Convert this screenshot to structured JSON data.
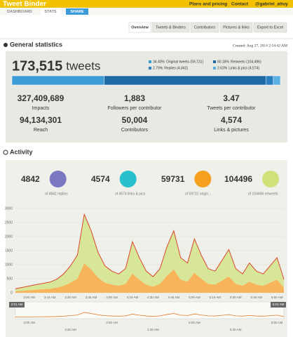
{
  "header": {
    "brand": "Tweet Binder",
    "links": [
      "Plans and pricing",
      "Contact",
      "@gabriel_attuy"
    ],
    "tabs": [
      "DASHBOARD",
      "STATS",
      "SHARE"
    ]
  },
  "nav": [
    "Overview",
    "Tweets & Binders",
    "Contributors",
    "Pictures & links",
    "Export to Excel"
  ],
  "general": {
    "title": "General statistics",
    "created": "Created: Aug 27, 2014 2:54:42 AM",
    "total": "173,515",
    "total_unit": "tweets",
    "breakdown": {
      "values": [
        34.4,
        2.79,
        60.18,
        2.63
      ],
      "value_labels": [
        "34.40%",
        "2.79%",
        "60.18%",
        "2.63%"
      ],
      "labels": [
        "Original tweets (59,731)",
        "Replies (4,842)",
        "Retweets (104,496)",
        "Links & pics (4,574)"
      ],
      "colors": [
        "#3d9bd6",
        "#2a7fc0",
        "#1f6aa5",
        "#5ab0e0"
      ]
    },
    "stats": [
      {
        "value": "327,409,689",
        "label": "Impacts"
      },
      {
        "value": "1,883",
        "label": "Followers per contributor"
      },
      {
        "value": "3.47",
        "label": "Tweets per contributor"
      },
      {
        "value": "94,134,301",
        "label": "Reach"
      },
      {
        "value": "50,004",
        "label": "Contributors"
      },
      {
        "value": "4,574",
        "label": "Links & pictures"
      }
    ]
  },
  "activity": {
    "title": "Activity",
    "counters": [
      {
        "value": "4842",
        "label": "of 4842 replies",
        "color": "#7b78c4"
      },
      {
        "value": "4574",
        "label": "of 4574 links & pics",
        "color": "#27c0cc"
      },
      {
        "value": "59731",
        "label": "of 59731 origin...",
        "color": "#f5a01e"
      },
      {
        "value": "104496",
        "label": "of 104496 retweets",
        "color": "#cfe27a"
      }
    ]
  },
  "chart_data": {
    "type": "area",
    "stacked": true,
    "grid": true,
    "line_color": "#d9482b",
    "categories": [
      null,
      null,
      "3:00 AM",
      null,
      null,
      "3:15 AM",
      null,
      null,
      "3:30 AM",
      null,
      null,
      "3:45 AM",
      null,
      null,
      "4:00 AM",
      null,
      null,
      "4:15 AM",
      null,
      null,
      "4:30 AM",
      null,
      null,
      "4:45 AM",
      null,
      null,
      "5:00 AM",
      null,
      null,
      "5:15 AM",
      null,
      null,
      "5:30 AM",
      null,
      null,
      "5:45 AM",
      null,
      null,
      "6:00 AM",
      null
    ],
    "series": [
      {
        "color": "#f7b45a",
        "values": [
          55,
          70,
          90,
          110,
          125,
          140,
          180,
          250,
          360,
          500,
          1050,
          830,
          540,
          360,
          290,
          250,
          320,
          680,
          470,
          290,
          215,
          320,
          610,
          830,
          470,
          400,
          720,
          500,
          320,
          290,
          430,
          580,
          320,
          250,
          400,
          290,
          250,
          360,
          470,
          180
        ]
      },
      {
        "color": "#d8e69a",
        "values": [
          90,
          120,
          150,
          180,
          210,
          240,
          300,
          420,
          600,
          840,
          1740,
          1380,
          900,
          600,
          480,
          420,
          540,
          1140,
          780,
          480,
          360,
          540,
          1020,
          1380,
          780,
          660,
          1200,
          840,
          540,
          480,
          720,
          960,
          540,
          420,
          660,
          480,
          420,
          600,
          780,
          300
        ]
      }
    ],
    "ylim": [
      0,
      3000
    ],
    "yticks": [
      0,
      500,
      1000,
      1500,
      2000,
      2500,
      3000
    ]
  },
  "navigator": {
    "start": "2:51 AM",
    "end": "6:03 AM",
    "labels": [
      "3:00 AM",
      "3:30 AM",
      "4:00 AM",
      "4:30 AM",
      "5:00 AM",
      "5:30 AM",
      "6:00 AM"
    ]
  }
}
